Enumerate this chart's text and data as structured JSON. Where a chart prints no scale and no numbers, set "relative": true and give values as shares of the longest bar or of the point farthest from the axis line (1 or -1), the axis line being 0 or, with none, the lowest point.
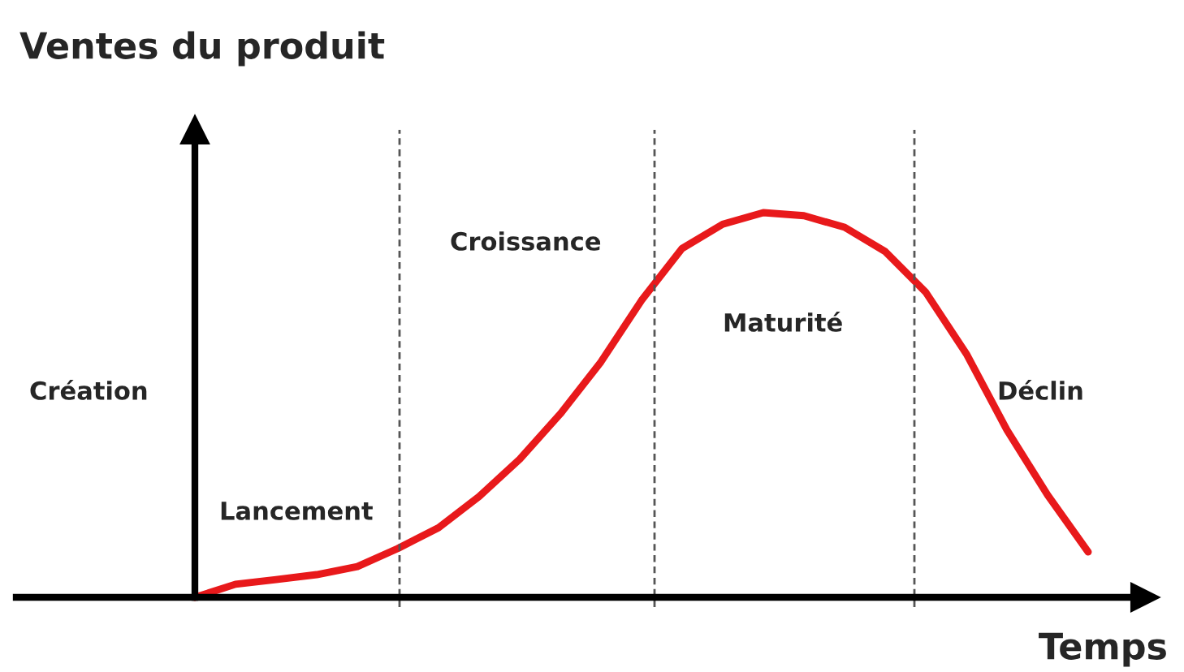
{
  "chart_data": {
    "type": "line",
    "relative": true,
    "title": "Ventes du produit",
    "xlabel": "Temps",
    "categories": [
      null,
      null,
      null,
      null,
      null,
      null,
      null,
      null,
      null,
      null,
      null,
      null,
      null,
      null,
      null,
      null,
      null,
      null,
      null,
      null,
      null,
      null,
      null
    ],
    "series": [
      {
        "color": "#e8191b",
        "values": [
          0,
          0.034,
          0.046,
          0.059,
          0.08,
          0.127,
          0.181,
          0.262,
          0.359,
          0.477,
          0.612,
          0.772,
          0.907,
          0.97,
          1.0,
          0.992,
          0.962,
          0.899,
          0.793,
          0.633,
          0.435,
          0.266,
          0.118
        ]
      }
    ],
    "annotations": [
      "Création",
      "Lancement",
      "Croissance",
      "Maturité",
      "Déclin"
    ],
    "legend": false,
    "marker": "none",
    "line_style": "solid"
  }
}
